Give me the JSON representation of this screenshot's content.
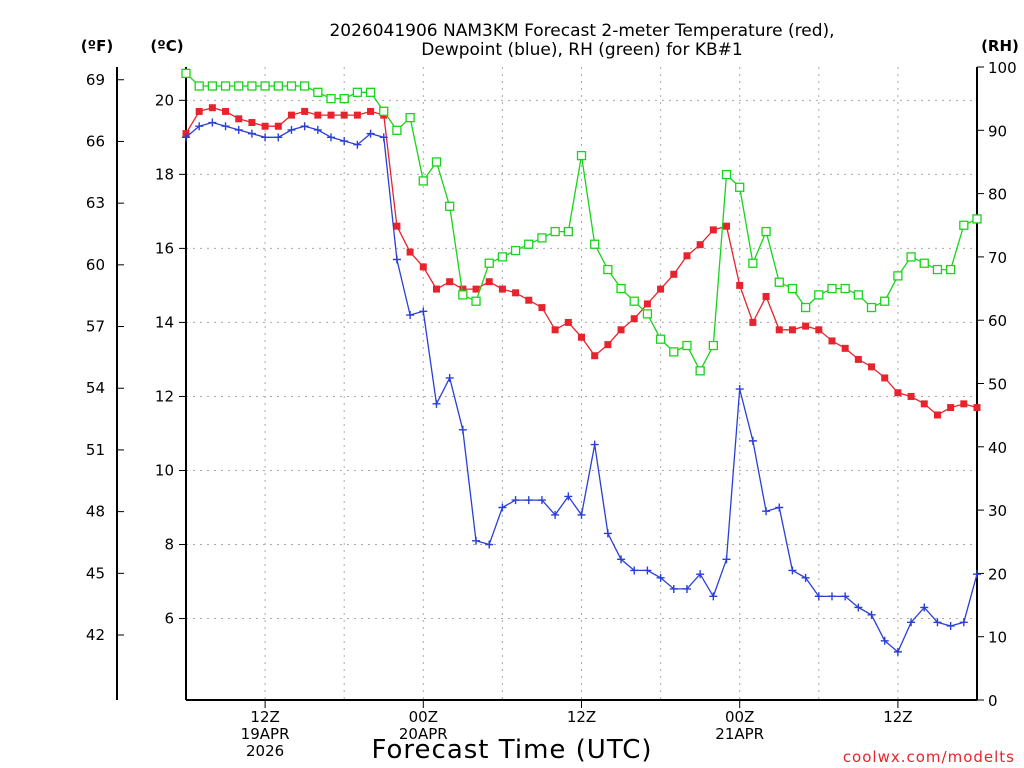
{
  "chart_data": {
    "type": "line",
    "title": [
      "2026041906 NAM3KM Forecast 2-meter Temperature (red),",
      "Dewpoint (blue), RH (green) for KB#1"
    ],
    "xlabel": "Forecast Time (UTC)",
    "credit": "coolwx.com/modelts",
    "x_hours": [
      0,
      1,
      2,
      3,
      4,
      5,
      6,
      7,
      8,
      9,
      10,
      11,
      12,
      13,
      14,
      15,
      16,
      17,
      18,
      19,
      20,
      21,
      22,
      23,
      24,
      25,
      26,
      27,
      28,
      29,
      30,
      31,
      32,
      33,
      34,
      35,
      36,
      37,
      38,
      39,
      40,
      41,
      42,
      43,
      44,
      45,
      46,
      47,
      48,
      49,
      50,
      51,
      52,
      53,
      54,
      55,
      56,
      57,
      58,
      59,
      60
    ],
    "x_ticks": [
      {
        "hour": 6,
        "lines": [
          "12Z",
          "19APR",
          "2026"
        ]
      },
      {
        "hour": 18,
        "lines": [
          "00Z",
          "20APR"
        ]
      },
      {
        "hour": 30,
        "lines": [
          "12Z"
        ]
      },
      {
        "hour": 42,
        "lines": [
          "00Z",
          "21APR"
        ]
      },
      {
        "hour": 54,
        "lines": [
          "12Z"
        ]
      }
    ],
    "y_left_c": {
      "label": "(ºC)",
      "ticks": [
        6,
        8,
        10,
        12,
        14,
        16,
        18,
        20
      ],
      "range": [
        3.8,
        20.9
      ]
    },
    "y_left_f": {
      "label": "(ºF)",
      "ticks": [
        42,
        45,
        48,
        51,
        54,
        57,
        60,
        63,
        66,
        69
      ]
    },
    "y_right_rh": {
      "label": "(RH)",
      "ticks": [
        0,
        10,
        20,
        30,
        40,
        50,
        60,
        70,
        80,
        90,
        100
      ],
      "range": [
        0,
        100
      ]
    },
    "series": [
      {
        "name": "Temperature (red)",
        "unit": "C",
        "color": "#e8232d",
        "marker": "filled-square",
        "values": [
          19.1,
          19.7,
          19.8,
          19.7,
          19.5,
          19.4,
          19.3,
          19.3,
          19.6,
          19.7,
          19.6,
          19.6,
          19.6,
          19.6,
          19.7,
          19.6,
          16.6,
          15.9,
          15.5,
          14.9,
          15.1,
          14.9,
          14.9,
          15.1,
          14.9,
          14.8,
          14.6,
          14.4,
          13.8,
          14.0,
          13.6,
          13.1,
          13.4,
          13.8,
          14.1,
          14.5,
          14.9,
          15.3,
          15.8,
          16.1,
          16.5,
          16.6,
          15.0,
          14.0,
          14.7,
          13.8,
          13.8,
          13.9,
          13.8,
          13.5,
          13.3,
          13.0,
          12.8,
          12.5,
          12.1,
          12.0,
          11.8,
          11.5,
          11.7,
          11.8,
          11.7
        ]
      },
      {
        "name": "Dewpoint (blue)",
        "unit": "C",
        "color": "#2a3fd6",
        "marker": "plus",
        "values": [
          19.0,
          19.3,
          19.4,
          19.3,
          19.2,
          19.1,
          19.0,
          19.0,
          19.2,
          19.3,
          19.2,
          19.0,
          18.9,
          18.8,
          19.1,
          19.0,
          15.7,
          14.2,
          14.3,
          11.8,
          12.5,
          11.1,
          8.1,
          8.0,
          9.0,
          9.2,
          9.2,
          9.2,
          8.8,
          9.3,
          8.8,
          10.7,
          8.3,
          7.6,
          7.3,
          7.3,
          7.1,
          6.8,
          6.8,
          7.2,
          6.6,
          7.6,
          12.2,
          10.8,
          8.9,
          9.0,
          7.3,
          7.1,
          6.6,
          6.6,
          6.6,
          6.3,
          6.1,
          5.4,
          5.1,
          5.9,
          6.3,
          5.9,
          5.8,
          5.9,
          7.2
        ]
      },
      {
        "name": "RH (green)",
        "unit": "%",
        "color": "#18d41a",
        "marker": "open-square",
        "values": [
          99,
          97,
          97,
          97,
          97,
          97,
          97,
          97,
          97,
          97,
          96,
          95,
          95,
          96,
          96,
          93,
          90,
          92,
          82,
          85,
          78,
          64,
          63,
          69,
          70,
          71,
          72,
          73,
          74,
          74,
          86,
          72,
          68,
          65,
          63,
          61,
          57,
          55,
          56,
          52,
          56,
          83,
          81,
          69,
          74,
          66,
          65,
          62,
          64,
          65,
          65,
          64,
          62,
          63,
          67,
          70,
          69,
          68,
          68,
          75,
          76
        ]
      }
    ]
  }
}
